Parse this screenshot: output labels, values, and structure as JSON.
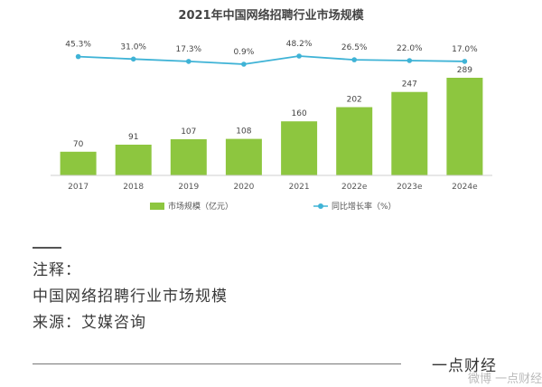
{
  "chart_data": {
    "type": "bar",
    "title": "2021年中国网络招聘行业市场规模",
    "categories": [
      "2017",
      "2018",
      "2019",
      "2020",
      "2021",
      "2022e",
      "2023e",
      "2024e"
    ],
    "series": [
      {
        "name": "市场规模（亿元）",
        "type": "bar",
        "values": [
          70,
          91,
          107,
          108,
          160,
          202,
          247,
          289
        ],
        "labels": [
          "70",
          "91",
          "107",
          "108",
          "160",
          "202",
          "247",
          "289"
        ],
        "color": "#8dc63f"
      },
      {
        "name": "同比增长率（%）",
        "type": "line",
        "values": [
          45.3,
          31.0,
          17.3,
          0.9,
          48.2,
          26.5,
          22.0,
          17.0
        ],
        "labels": [
          "45.3%",
          "31.0%",
          "17.3%",
          "0.9%",
          "48.2%",
          "26.5%",
          "22.0%",
          "17.0%"
        ],
        "color": "#3fb3d6"
      }
    ],
    "grid": false,
    "legend": "bottom"
  },
  "notes": {
    "heading": "注释：",
    "line1": "中国网络招聘行业市场规模",
    "line2": "来源：艾媒咨询"
  },
  "credit": "一点财经",
  "watermark": "微博 一点财经"
}
